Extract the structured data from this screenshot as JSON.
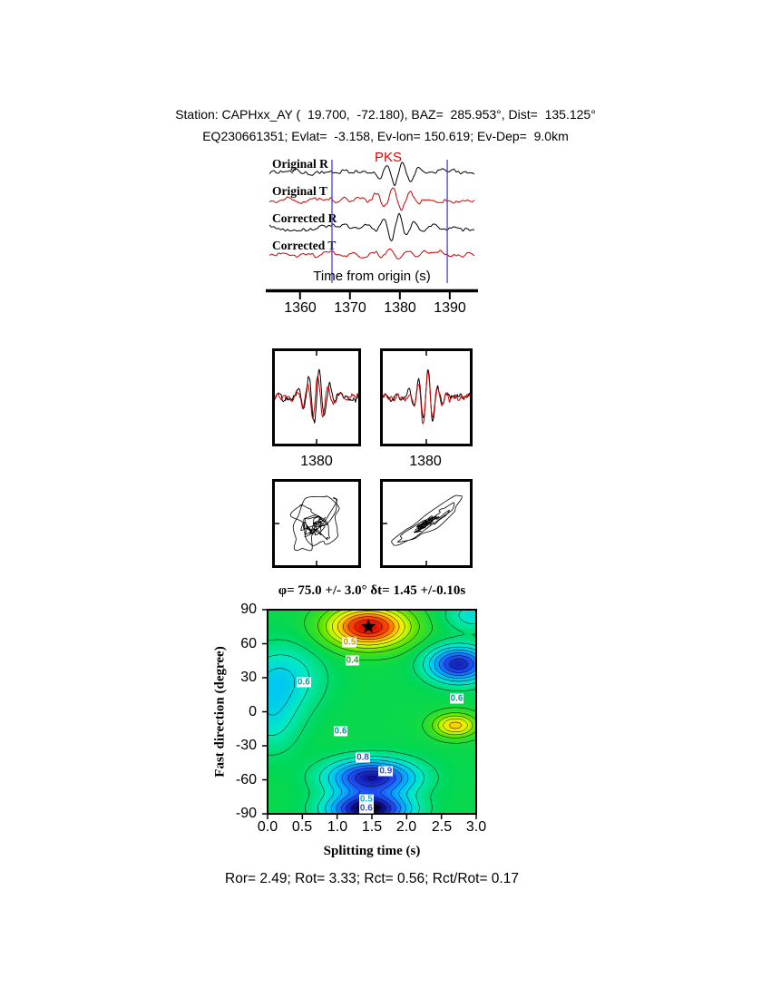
{
  "header": {
    "line1": "Station: CAPHxx_AY (  19.700,  -72.180), BAZ=  285.953°, Dist=  135.125°",
    "line2": "EQ230661351; Evlat=  -3.158, Ev-lon= 150.619; Ev-Dep=  9.0km"
  },
  "phase_label": "PKS",
  "trace_labels": [
    "Original R",
    "Original T",
    "Corrected R",
    "Corrected T"
  ],
  "time_axis": {
    "label": "Time from origin (s)",
    "min": 1353.5,
    "max": 1395.3,
    "ticks": [
      1360,
      1370,
      1380,
      1390
    ],
    "tick_labels": [
      "1360",
      "1370",
      "1380",
      "1390"
    ],
    "window_picks": [
      1366.4,
      1389.5
    ]
  },
  "zoom_panels": {
    "tick_label": "1380"
  },
  "stats_line": "Ror= 2.49; Rot= 3.33; Rct= 0.56; Rct/Rot= 0.17",
  "chart_data": [
    {
      "type": "line",
      "name": "waveforms",
      "title": "Original and corrected R/T seismograms (synthetic approximation)",
      "x_range_s": [
        1353.5,
        1395.3
      ],
      "traces": [
        {
          "name": "Original R",
          "color": "#000000",
          "seed": 11,
          "noise": 0.42,
          "burst_amp": 0.95,
          "burst_center": 0.63,
          "burst_width": 0.1,
          "cycles": 13,
          "phase": 0.0
        },
        {
          "name": "Original T",
          "color": "#cc0000",
          "seed": 12,
          "noise": 0.38,
          "burst_amp": 0.8,
          "burst_center": 0.6,
          "burst_width": 0.12,
          "cycles": 12,
          "phase": 1.3
        },
        {
          "name": "Corrected R",
          "color": "#000000",
          "seed": 13,
          "noise": 0.4,
          "burst_amp": 0.95,
          "burst_center": 0.62,
          "burst_width": 0.1,
          "cycles": 13,
          "phase": 0.6
        },
        {
          "name": "Corrected T",
          "color": "#cc0000",
          "seed": 14,
          "noise": 0.36,
          "burst_amp": 0.45,
          "burst_center": 0.6,
          "burst_width": 0.12,
          "cycles": 12,
          "phase": 2.2
        }
      ]
    },
    {
      "type": "line",
      "name": "zoom-windows",
      "tick_label": "1380",
      "panels": [
        {
          "series": [
            {
              "color": "#000000",
              "seed": 31,
              "noise": 0.22,
              "burst_amp": 1.0,
              "burst_center": 0.5,
              "burst_width": 0.17,
              "cycles": 8,
              "phase": 0.0
            },
            {
              "color": "#cc0000",
              "seed": 32,
              "noise": 0.2,
              "burst_amp": 0.85,
              "burst_center": 0.5,
              "burst_width": 0.17,
              "cycles": 8,
              "phase": 0.8
            }
          ]
        },
        {
          "series": [
            {
              "color": "#000000",
              "seed": 33,
              "noise": 0.22,
              "burst_amp": 0.95,
              "burst_center": 0.5,
              "burst_width": 0.15,
              "cycles": 9,
              "phase": 0.4
            },
            {
              "color": "#cc0000",
              "seed": 34,
              "noise": 0.2,
              "burst_amp": 0.9,
              "burst_center": 0.5,
              "burst_width": 0.15,
              "cycles": 9,
              "phase": 0.5
            }
          ]
        }
      ]
    },
    {
      "type": "scatter",
      "name": "particle-motion",
      "panels": [
        {
          "mix": 0.15,
          "sx": 34,
          "sy": 36,
          "a": {
            "seed": 41,
            "noise": 0.5,
            "burst_amp": 0.9,
            "burst_center": 0.5,
            "burst_width": 0.22,
            "cycles": 6,
            "phase": 0.3
          },
          "b": {
            "seed": 42,
            "noise": 0.5,
            "burst_amp": 0.9,
            "burst_center": 0.5,
            "burst_width": 0.22,
            "cycles": 7,
            "phase": 1.7
          }
        },
        {
          "mix": 0.6,
          "sx": 36,
          "sy": 34,
          "a": {
            "seed": 45,
            "noise": 0.5,
            "burst_amp": 0.9,
            "burst_center": 0.5,
            "burst_width": 0.22,
            "cycles": 6,
            "phase": 0.9
          },
          "b": {
            "seed": 46,
            "noise": 0.5,
            "burst_amp": 0.9,
            "burst_center": 0.5,
            "burst_width": 0.22,
            "cycles": 7,
            "phase": 2.4
          }
        }
      ]
    },
    {
      "type": "heatmap",
      "name": "splitting-misfit-surface",
      "title": "φ= 75.0 +/- 3.0° δt= 1.45 +/-0.10s",
      "xlabel": "Splitting time (s)",
      "ylabel": "Fast direction (degree)",
      "xlim": [
        0,
        3
      ],
      "ylim": [
        -90,
        90
      ],
      "xticks": [
        0,
        0.5,
        1,
        1.5,
        2,
        2.5,
        3
      ],
      "yticks": [
        90,
        60,
        30,
        0,
        -30,
        -60,
        -90
      ],
      "xtick_labels": [
        "0.0",
        "0.5",
        "1.0",
        "1.5",
        "2.0",
        "2.5",
        "3.0"
      ],
      "ytick_labels": [
        "90",
        "60",
        "30",
        "0",
        "-30",
        "-60",
        "-90"
      ],
      "best_fit": {
        "phi_deg": 75.0,
        "phi_err_deg": 3.0,
        "dt_s": 1.45,
        "dt_err_s": 0.1
      },
      "star": {
        "x": 1.45,
        "y": 75
      },
      "surface": {
        "base": 0.58,
        "bumps": [
          {
            "x": 1.45,
            "y": 75,
            "sx": 0.55,
            "sy": 17,
            "a": 0.42
          },
          {
            "x": 2.75,
            "y": 42,
            "sx": 0.42,
            "sy": 15,
            "a": -0.36
          },
          {
            "x": 0.2,
            "y": 30,
            "sx": 0.55,
            "sy": 28,
            "a": -0.13
          },
          {
            "x": 2.7,
            "y": -12,
            "sx": 0.3,
            "sy": 10,
            "a": 0.24
          },
          {
            "x": 1.5,
            "y": -58,
            "sx": 0.6,
            "sy": 15,
            "a": -0.38
          },
          {
            "x": 1.45,
            "y": -86,
            "sx": 0.55,
            "sy": 13,
            "a": -0.45
          },
          {
            "x": 0.05,
            "y": -5,
            "sx": 0.4,
            "sy": 30,
            "a": -0.1
          },
          {
            "x": 3.0,
            "y": 85,
            "sx": 0.4,
            "sy": 12,
            "a": -0.12
          }
        ]
      },
      "contour_levels": [
        0.15,
        0.2,
        0.25,
        0.3,
        0.35,
        0.4,
        0.45,
        0.5,
        0.55,
        0.6,
        0.65,
        0.7,
        0.75,
        0.8,
        0.85,
        0.9,
        0.95
      ],
      "contour_labels": [
        {
          "text": "0.5",
          "x": 1.18,
          "y": 61,
          "color": "#c8a000"
        },
        {
          "text": "0.4",
          "x": 1.22,
          "y": 45,
          "color": "#30a030"
        },
        {
          "text": "0.6",
          "x": 0.52,
          "y": 26,
          "color": "#00a0a0"
        },
        {
          "text": "0.6",
          "x": 2.72,
          "y": 12,
          "color": "#00a0a0"
        },
        {
          "text": "0.6",
          "x": 1.05,
          "y": -17,
          "color": "#00a0a0"
        },
        {
          "text": "0.8",
          "x": 1.37,
          "y": -40,
          "color": "#3050d0"
        },
        {
          "text": "0.9",
          "x": 1.7,
          "y": -52,
          "color": "#3050d0"
        },
        {
          "text": "0.5",
          "x": 1.42,
          "y": -77,
          "color": "#00b0d0"
        },
        {
          "text": "0.6",
          "x": 1.42,
          "y": -85,
          "color": "#3050d0"
        }
      ]
    }
  ]
}
